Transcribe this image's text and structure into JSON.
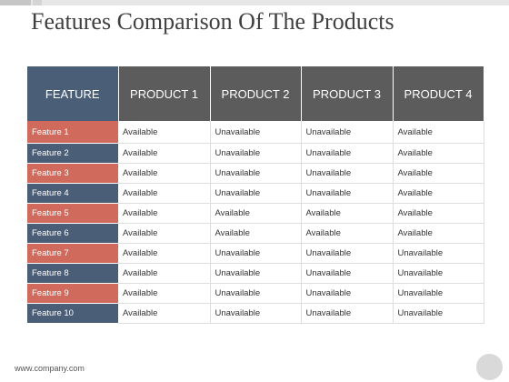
{
  "title": "Features Comparison Of The Products",
  "headers": [
    "FEATURE",
    "PRODUCT 1",
    "PRODUCT 2",
    "PRODUCT 3",
    "PRODUCT 4"
  ],
  "rows": [
    {
      "feature": "Feature 1",
      "values": [
        "Available",
        "Unavailable",
        "Unavailable",
        "Available"
      ]
    },
    {
      "feature": "Feature 2",
      "values": [
        "Available",
        "Unavailable",
        "Unavailable",
        "Available"
      ]
    },
    {
      "feature": "Feature 3",
      "values": [
        "Available",
        "Unavailable",
        "Unavailable",
        "Available"
      ]
    },
    {
      "feature": "Feature 4",
      "values": [
        "Available",
        "Unavailable",
        "Unavailable",
        "Available"
      ]
    },
    {
      "feature": "Feature 5",
      "values": [
        "Available",
        "Available",
        "Available",
        "Available"
      ]
    },
    {
      "feature": "Feature 6",
      "values": [
        "Available",
        "Available",
        "Available",
        "Available"
      ]
    },
    {
      "feature": "Feature 7",
      "values": [
        "Available",
        "Unavailable",
        "Unavailable",
        "Unavailable"
      ]
    },
    {
      "feature": "Feature 8",
      "values": [
        "Available",
        "Unavailable",
        "Unavailable",
        "Unavailable"
      ]
    },
    {
      "feature": "Feature 9",
      "values": [
        "Available",
        "Unavailable",
        "Unavailable",
        "Unavailable"
      ]
    },
    {
      "feature": "Feature 10",
      "values": [
        "Available",
        "Unavailable",
        "Unavailable",
        "Unavailable"
      ]
    }
  ],
  "footer": "www.company.com",
  "colors": {
    "feature_header": "#4b5e78",
    "product_header": "#5c5c5c",
    "feature_red": "#cf6a5c",
    "feature_blue": "#4b5e78"
  }
}
